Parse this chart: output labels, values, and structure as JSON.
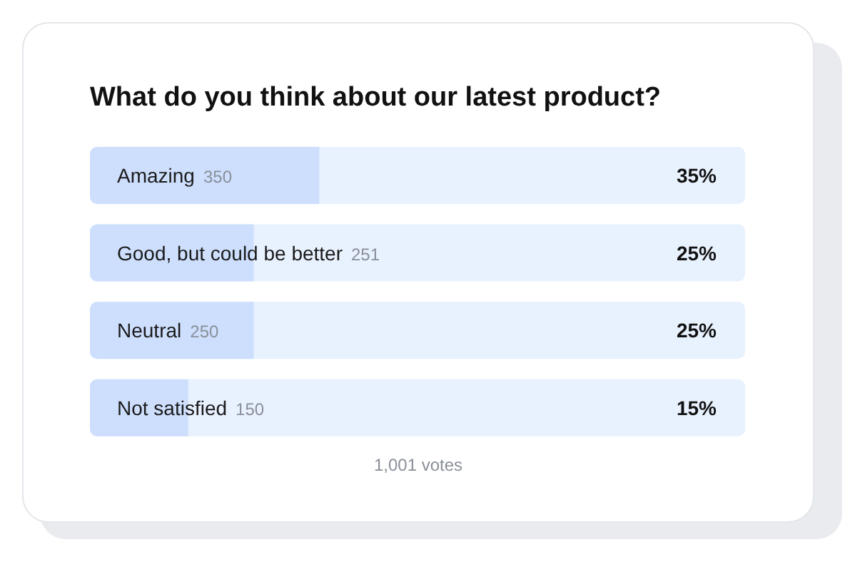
{
  "chart_data": {
    "type": "bar",
    "orientation": "horizontal",
    "title": "What do you think about our latest product?",
    "categories": [
      "Amazing",
      "Good, but could be better",
      "Neutral",
      "Not satisfied"
    ],
    "values": [
      35,
      25,
      25,
      15
    ],
    "color": "#cddffd",
    "xlim": [
      0,
      100
    ],
    "value_labels": [
      "35%",
      "25%",
      "25%",
      "15%"
    ],
    "annotations": [
      "350",
      "251",
      "250",
      "150",
      "1,001 votes"
    ]
  }
}
